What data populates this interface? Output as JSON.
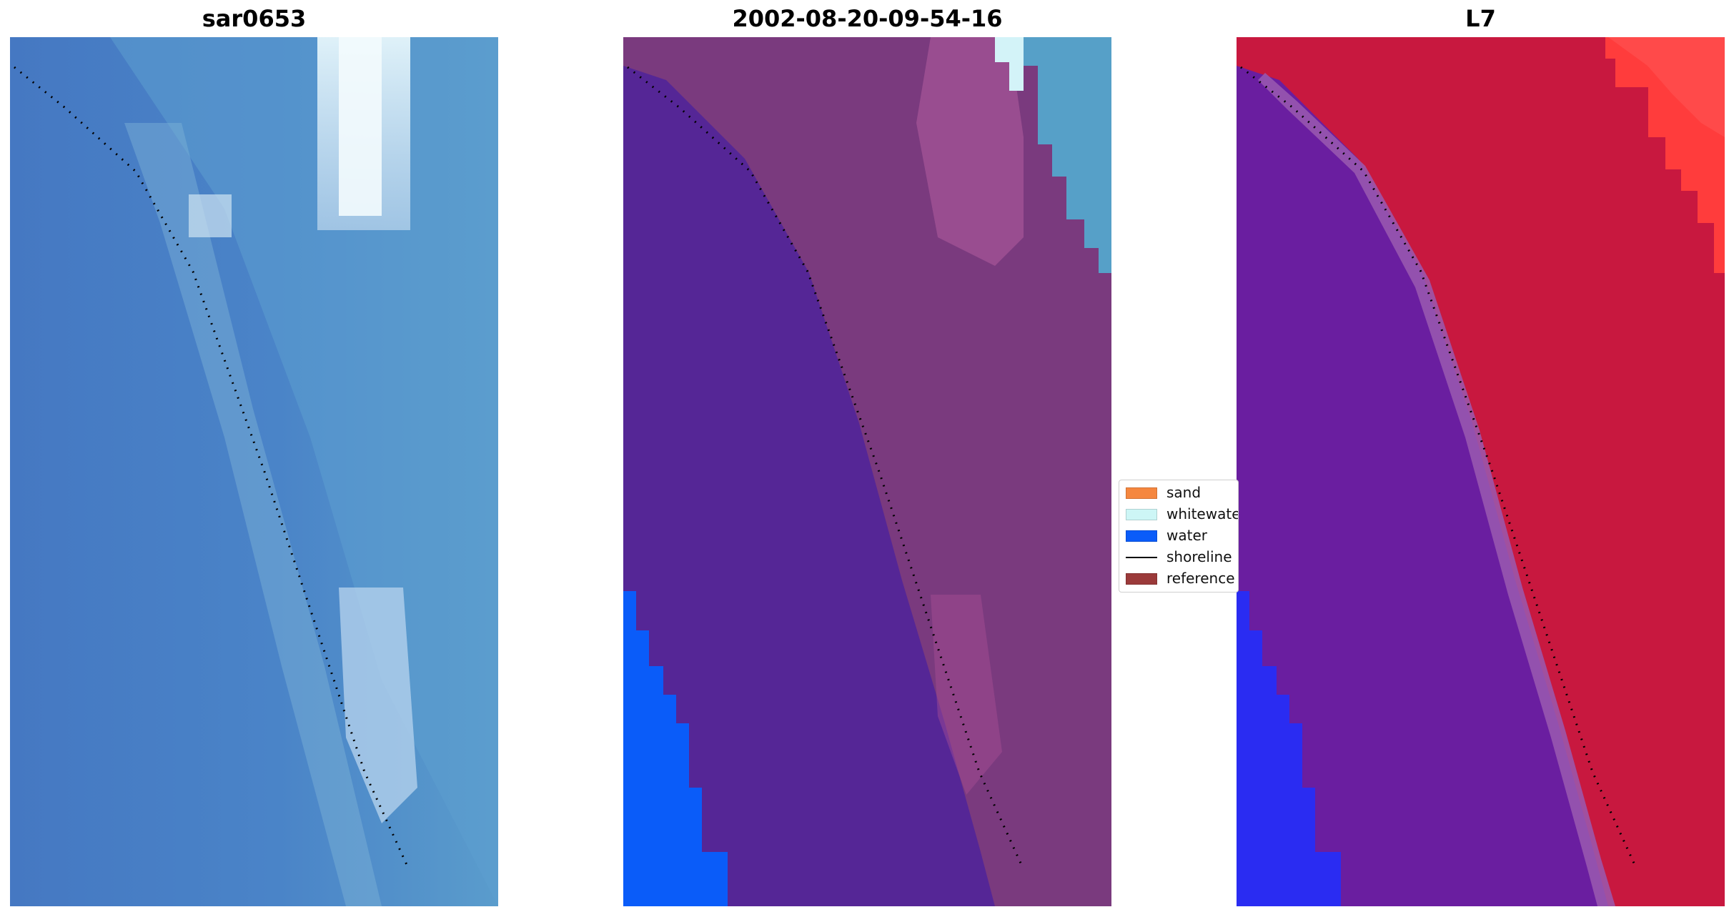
{
  "panels": [
    {
      "title": "sar0653"
    },
    {
      "title": "2002-08-20-09-54-16"
    },
    {
      "title": "L7"
    }
  ],
  "legend": {
    "items": [
      {
        "label": "sand",
        "color": "#f5873f",
        "kind": "patch"
      },
      {
        "label": "whitewater",
        "color": "#cdf6f6",
        "kind": "patch"
      },
      {
        "label": "water",
        "color": "#0a5cf9",
        "kind": "patch"
      },
      {
        "label": "shoreline",
        "color": "#000000",
        "kind": "line"
      },
      {
        "label": "reference",
        "color": "#9b3a3a",
        "kind": "patch"
      }
    ]
  },
  "colors": {
    "sar_water": "#4a7fc4",
    "sar_whitewater": "#e8f4f8",
    "classified_sand": "#7a3a7e",
    "classified_water": "#5a2896",
    "classified_blue": "#0a5cf9",
    "l7_red": "#c8183f",
    "l7_purple": "#6a1ea0",
    "shoreline": "#000000"
  }
}
